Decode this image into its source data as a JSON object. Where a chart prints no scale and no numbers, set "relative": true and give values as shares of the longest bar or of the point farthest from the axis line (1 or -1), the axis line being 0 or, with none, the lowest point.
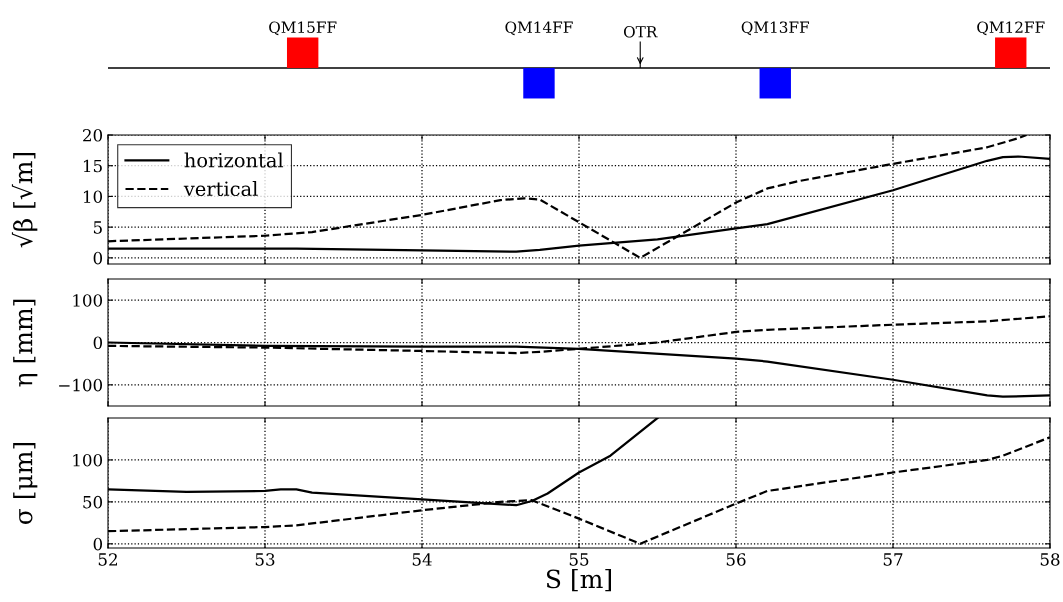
{
  "chart_data": [
    {
      "type": "bar",
      "relative": true,
      "x": [
        53.24,
        54.745,
        56.25,
        57.75
      ],
      "values": [
        1,
        -1,
        -1,
        1
      ],
      "colors": [
        "#ff0000",
        "#0000ff",
        "#0000ff",
        "#ff0000"
      ],
      "xlim": [
        52,
        58
      ],
      "tick_labels": false,
      "annotations": [
        {
          "text": "QM15FF",
          "x": 53.24,
          "y": 1
        },
        {
          "text": "QM14FF",
          "x": 54.745,
          "y": 0
        },
        {
          "text": "QM13FF",
          "x": 56.25,
          "y": 0
        },
        {
          "text": "QM12FF",
          "x": 57.75,
          "y": 1
        }
      ],
      "ref_lines": [
        {
          "axis": "x",
          "value": 55.39,
          "label": "OTR"
        }
      ]
    },
    {
      "type": "line",
      "ylabel": "√β [√m]",
      "xlim": [
        52,
        58
      ],
      "ylim": [
        -1,
        20
      ],
      "yticks": [
        0,
        5,
        10,
        15,
        20
      ],
      "xticks": [
        52,
        53,
        54,
        55,
        56,
        57,
        58
      ],
      "tick_labels": "y",
      "grid": true,
      "legend": "top left",
      "series": [
        {
          "name": "horizontal",
          "color": "#000000",
          "line_style": "solid",
          "x": [
            52,
            53,
            53.2,
            54,
            54.6,
            54.75,
            55,
            55.5,
            56,
            56.2,
            57,
            57.6,
            57.7,
            57.8,
            58
          ],
          "values": [
            1.5,
            1.5,
            1.5,
            1.2,
            1.0,
            1.3,
            2,
            3,
            4.8,
            5.5,
            11,
            15.8,
            16.4,
            16.5,
            16.1
          ]
        },
        {
          "name": "vertical",
          "color": "#000000",
          "line_style": "dashed",
          "x": [
            52,
            53,
            53.3,
            54,
            54.5,
            54.65,
            54.75,
            55,
            55.39,
            56,
            56.2,
            56.4,
            57,
            57.6,
            57.8,
            57.85
          ],
          "values": [
            2.7,
            3.6,
            4.2,
            7,
            9.4,
            9.7,
            9.5,
            5.8,
            0,
            9,
            11.3,
            12.5,
            15.3,
            18,
            19.5,
            20
          ]
        }
      ]
    },
    {
      "type": "line",
      "ylabel": "η [mm]",
      "xlim": [
        52,
        58
      ],
      "ylim": [
        -150,
        150
      ],
      "yticks": [
        {
          "value": -100,
          "label": "−100"
        },
        0,
        100
      ],
      "xticks": [
        52,
        53,
        54,
        55,
        56,
        57,
        58
      ],
      "tick_labels": "y",
      "grid": true,
      "series": [
        {
          "color": "#000000",
          "line_style": "solid",
          "x": [
            52,
            53,
            54,
            54.6,
            55,
            56,
            56.2,
            57,
            57.6,
            57.7,
            58
          ],
          "values": [
            0,
            -8,
            -10,
            -10,
            -15,
            -38,
            -45,
            -88,
            -125,
            -128,
            -125
          ]
        },
        {
          "color": "#000000",
          "line_style": "dashed",
          "x": [
            52,
            53,
            54,
            54.6,
            54.75,
            55,
            55.5,
            56,
            56.2,
            57,
            57.6,
            58
          ],
          "values": [
            -8,
            -12,
            -20,
            -25,
            -22,
            -15,
            0,
            25,
            30,
            42,
            50,
            62
          ]
        }
      ]
    },
    {
      "type": "line",
      "ylabel": "σ [μm]",
      "xlabel": "S [m]",
      "xlim": [
        52,
        58
      ],
      "ylim": [
        -5,
        150
      ],
      "yticks": [
        0,
        50,
        100
      ],
      "xticks": [
        52,
        53,
        54,
        55,
        56,
        57,
        58
      ],
      "grid": true,
      "series": [
        {
          "color": "#000000",
          "line_style": "solid",
          "x": [
            52,
            52.5,
            53,
            53.1,
            53.2,
            53.3,
            54,
            54.6,
            54.7,
            54.8,
            55,
            55.2,
            55.5
          ],
          "values": [
            65,
            62,
            63,
            65,
            65,
            61,
            53,
            46,
            51,
            60,
            85,
            105,
            150
          ]
        },
        {
          "color": "#000000",
          "line_style": "dashed",
          "x": [
            52,
            53,
            53.2,
            54,
            54.5,
            54.7,
            55,
            55.39,
            56,
            56.2,
            57,
            57.6,
            57.7,
            58
          ],
          "values": [
            15,
            20,
            22,
            40,
            50,
            52,
            30,
            0,
            48,
            63,
            85,
            100,
            105,
            127
          ]
        }
      ]
    }
  ]
}
